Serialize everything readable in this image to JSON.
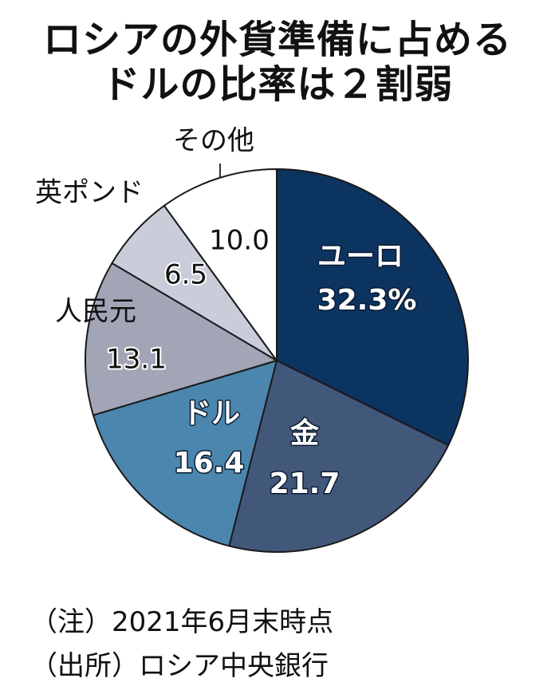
{
  "title": {
    "line1": "ロシアの外貨準備に占める",
    "line2": "ドルの比率は２割弱"
  },
  "chart_data": {
    "type": "pie",
    "slices": [
      {
        "label": "ユーロ",
        "value": 32.3,
        "value_text": "32.3%",
        "color": "#0c3461",
        "label_inside": true,
        "text_color": "#ffffff",
        "bold": true
      },
      {
        "label": "金",
        "value": 21.7,
        "value_text": "21.7",
        "color": "#42587a",
        "label_inside": true,
        "text_color": "#ffffff",
        "bold": true
      },
      {
        "label": "ドル",
        "value": 16.4,
        "value_text": "16.4",
        "color": "#4a86ae",
        "label_inside": true,
        "text_color": "#ffffff",
        "bold": true
      },
      {
        "label": "人民元",
        "value": 13.1,
        "value_text": "13.1",
        "color": "#a1a5b6",
        "label_inside": false,
        "text_color": "#111111",
        "bold": false
      },
      {
        "label": "英ポンド",
        "value": 6.5,
        "value_text": "6.5",
        "color": "#c9ccd9",
        "label_inside": false,
        "text_color": "#111111",
        "bold": false
      },
      {
        "label": "その他",
        "value": 10.0,
        "value_text": "10.0",
        "color": "#ffffff",
        "label_inside": false,
        "text_color": "#111111",
        "bold": false
      }
    ],
    "start": "12 o'clock",
    "direction": "clockwise",
    "unit": "%"
  },
  "notes": {
    "note1": "（注）2021年6月末時点",
    "note2": "（出所）ロシア中央銀行"
  }
}
